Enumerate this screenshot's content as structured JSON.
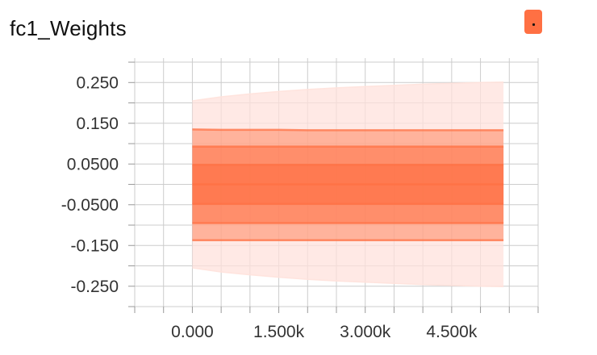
{
  "header": {
    "title": "fc1_Weights"
  },
  "colors": {
    "accent": "#ff7043",
    "outer_band": "#ffe2dc",
    "band_fill": "#ff7043",
    "grid": "#cccccc",
    "axis_text": "#333333"
  },
  "icons": {
    "expand": "expand-icon"
  },
  "chart_data": {
    "type": "area",
    "title": "fc1_Weights",
    "xlabel": "",
    "ylabel": "",
    "xlim": [
      -1000,
      6000
    ],
    "ylim": [
      -0.3,
      0.31
    ],
    "x_ticks": [
      0,
      1500,
      3000,
      4500
    ],
    "x_tick_labels": [
      "0.000",
      "1.500k",
      "3.000k",
      "4.500k"
    ],
    "y_ticks": [
      0.25,
      0.15,
      0.05,
      -0.05,
      -0.15,
      -0.25
    ],
    "y_tick_labels": [
      "0.250",
      "0.150",
      "0.0500",
      "-0.0500",
      "-0.150",
      "-0.250"
    ],
    "grid": true,
    "legend": "none",
    "x": [
      0,
      500,
      1000,
      1500,
      2000,
      2500,
      3000,
      3500,
      4000,
      4500,
      5000,
      5400
    ],
    "series": [
      {
        "values": [
          0.205,
          0.215,
          0.222,
          0.228,
          0.233,
          0.237,
          0.24,
          0.243,
          0.246,
          0.248,
          0.25,
          0.251
        ]
      },
      {
        "values": [
          0.135,
          0.134,
          0.134,
          0.134,
          0.133,
          0.133,
          0.133,
          0.133,
          0.133,
          0.133,
          0.133,
          0.133
        ]
      },
      {
        "values": [
          0.093,
          0.093,
          0.093,
          0.093,
          0.093,
          0.093,
          0.093,
          0.093,
          0.093,
          0.093,
          0.093,
          0.093
        ]
      },
      {
        "values": [
          0.048,
          0.048,
          0.048,
          0.048,
          0.048,
          0.048,
          0.048,
          0.048,
          0.048,
          0.048,
          0.048,
          0.048
        ]
      },
      {
        "values": [
          0.0,
          0.0,
          0.0,
          0.0,
          0.0,
          0.0,
          0.0,
          0.0,
          0.0,
          0.0,
          0.0,
          0.0
        ]
      },
      {
        "values": [
          -0.048,
          -0.048,
          -0.048,
          -0.048,
          -0.048,
          -0.048,
          -0.048,
          -0.048,
          -0.048,
          -0.048,
          -0.048,
          -0.048
        ]
      },
      {
        "values": [
          -0.095,
          -0.095,
          -0.095,
          -0.095,
          -0.095,
          -0.095,
          -0.095,
          -0.095,
          -0.095,
          -0.095,
          -0.095,
          -0.095
        ]
      },
      {
        "values": [
          -0.137,
          -0.137,
          -0.137,
          -0.137,
          -0.137,
          -0.137,
          -0.137,
          -0.137,
          -0.137,
          -0.137,
          -0.137,
          -0.137
        ]
      },
      {
        "values": [
          -0.205,
          -0.215,
          -0.222,
          -0.228,
          -0.233,
          -0.237,
          -0.24,
          -0.243,
          -0.246,
          -0.248,
          -0.25,
          -0.251
        ]
      }
    ]
  }
}
